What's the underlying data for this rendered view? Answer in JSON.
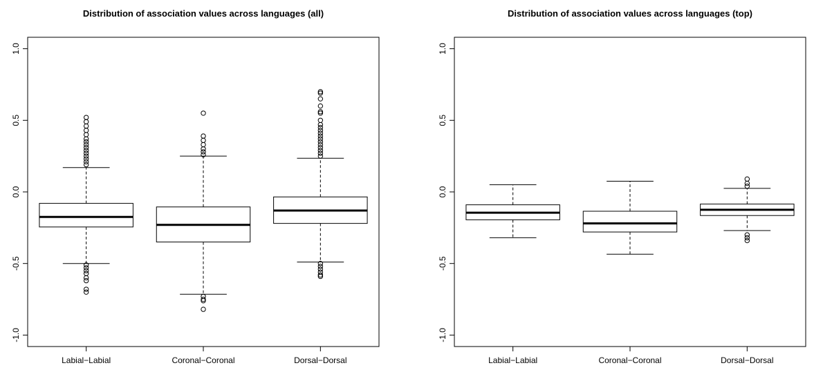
{
  "chart_data": [
    {
      "type": "boxplot",
      "title": "Distribution of association values across languages (all)",
      "categories": [
        "Labial−Labial",
        "Coronal−Coronal",
        "Dorsal−Dorsal"
      ],
      "boxes": [
        {
          "whislo": -0.5,
          "q1": -0.245,
          "med": -0.175,
          "q3": -0.08,
          "whishi": 0.17,
          "fliers": [
            0.19,
            0.21,
            0.23,
            0.25,
            0.27,
            0.29,
            0.31,
            0.33,
            0.35,
            0.37,
            0.4,
            0.43,
            0.46,
            0.49,
            0.52,
            -0.51,
            -0.53,
            -0.55,
            -0.57,
            -0.6,
            -0.62,
            -0.68,
            -0.7
          ]
        },
        {
          "whislo": -0.715,
          "q1": -0.35,
          "med": -0.23,
          "q3": -0.105,
          "whishi": 0.25,
          "fliers": [
            0.26,
            0.28,
            0.3,
            0.33,
            0.36,
            0.39,
            0.55,
            -0.73,
            -0.75,
            -0.76,
            -0.82
          ]
        },
        {
          "whislo": -0.49,
          "q1": -0.22,
          "med": -0.13,
          "q3": -0.035,
          "whishi": 0.235,
          "fliers": [
            0.25,
            0.27,
            0.29,
            0.31,
            0.33,
            0.35,
            0.37,
            0.39,
            0.41,
            0.43,
            0.45,
            0.47,
            0.5,
            0.55,
            0.56,
            0.6,
            0.65,
            0.69,
            0.7,
            -0.5,
            -0.52,
            -0.54,
            -0.56,
            -0.58,
            -0.59
          ]
        }
      ],
      "ylim": [
        -1.08,
        1.08
      ],
      "yticks": [
        {
          "value": -1,
          "label": "-1.0"
        },
        -0.5,
        {
          "value": 0,
          "label": "0.0"
        },
        0.5,
        {
          "value": 1,
          "label": "1.0"
        }
      ]
    },
    {
      "type": "boxplot",
      "title": "Distribution of association values across languages (top)",
      "categories": [
        "Labial−Labial",
        "Coronal−Coronal",
        "Dorsal−Dorsal"
      ],
      "boxes": [
        {
          "whislo": -0.32,
          "q1": -0.195,
          "med": -0.145,
          "q3": -0.09,
          "whishi": 0.05,
          "fliers": []
        },
        {
          "whislo": -0.435,
          "q1": -0.28,
          "med": -0.22,
          "q3": -0.135,
          "whishi": 0.075,
          "fliers": []
        },
        {
          "whislo": -0.27,
          "q1": -0.165,
          "med": -0.125,
          "q3": -0.085,
          "whishi": 0.025,
          "fliers": [
            0.04,
            0.06,
            0.09,
            -0.3,
            -0.32,
            -0.34
          ]
        }
      ],
      "ylim": [
        -1.08,
        1.08
      ],
      "yticks": [
        {
          "value": -1,
          "label": "-1.0"
        },
        -0.5,
        {
          "value": 0,
          "label": "0.0"
        },
        0.5,
        {
          "value": 1,
          "label": "1.0"
        }
      ]
    }
  ]
}
